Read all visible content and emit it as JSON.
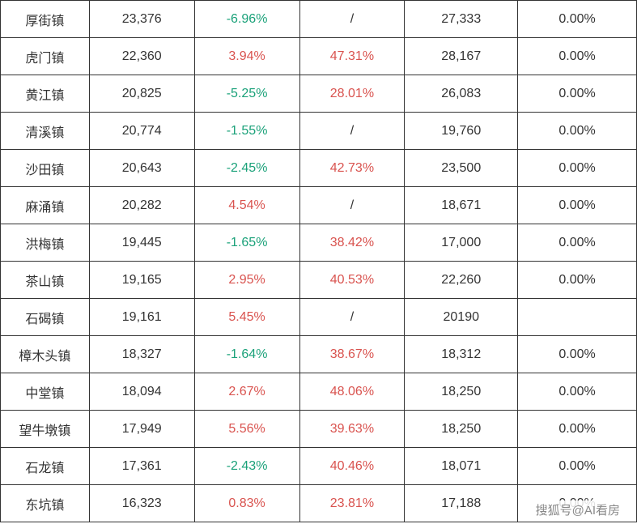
{
  "colors": {
    "positive": "#d9534f",
    "negative": "#1aa179",
    "text": "#333333",
    "border": "#333333"
  },
  "rows": [
    {
      "name": "厚街镇",
      "v1": "23,376",
      "p1": "-6.96%",
      "p1c": "neg",
      "p2": "/",
      "p2c": "",
      "v2": "27,333",
      "p3": "0.00%"
    },
    {
      "name": "虎门镇",
      "v1": "22,360",
      "p1": "3.94%",
      "p1c": "pos",
      "p2": "47.31%",
      "p2c": "pos",
      "v2": "28,167",
      "p3": "0.00%"
    },
    {
      "name": "黄江镇",
      "v1": "20,825",
      "p1": "-5.25%",
      "p1c": "neg",
      "p2": "28.01%",
      "p2c": "pos",
      "v2": "26,083",
      "p3": "0.00%"
    },
    {
      "name": "清溪镇",
      "v1": "20,774",
      "p1": "-1.55%",
      "p1c": "neg",
      "p2": "/",
      "p2c": "",
      "v2": "19,760",
      "p3": "0.00%"
    },
    {
      "name": "沙田镇",
      "v1": "20,643",
      "p1": "-2.45%",
      "p1c": "neg",
      "p2": "42.73%",
      "p2c": "pos",
      "v2": "23,500",
      "p3": "0.00%"
    },
    {
      "name": "麻涌镇",
      "v1": "20,282",
      "p1": "4.54%",
      "p1c": "pos",
      "p2": "/",
      "p2c": "",
      "v2": "18,671",
      "p3": "0.00%"
    },
    {
      "name": "洪梅镇",
      "v1": "19,445",
      "p1": "-1.65%",
      "p1c": "neg",
      "p2": "38.42%",
      "p2c": "pos",
      "v2": "17,000",
      "p3": "0.00%"
    },
    {
      "name": "茶山镇",
      "v1": "19,165",
      "p1": "2.95%",
      "p1c": "pos",
      "p2": "40.53%",
      "p2c": "pos",
      "v2": "22,260",
      "p3": "0.00%"
    },
    {
      "name": "石碣镇",
      "v1": "19,161",
      "p1": "5.45%",
      "p1c": "pos",
      "p2": "/",
      "p2c": "",
      "v2": "20190",
      "p3": ""
    },
    {
      "name": "樟木头镇",
      "v1": "18,327",
      "p1": "-1.64%",
      "p1c": "neg",
      "p2": "38.67%",
      "p2c": "pos",
      "v2": "18,312",
      "p3": "0.00%"
    },
    {
      "name": "中堂镇",
      "v1": "18,094",
      "p1": "2.67%",
      "p1c": "pos",
      "p2": "48.06%",
      "p2c": "pos",
      "v2": "18,250",
      "p3": "0.00%"
    },
    {
      "name": "望牛墩镇",
      "v1": "17,949",
      "p1": "5.56%",
      "p1c": "pos",
      "p2": "39.63%",
      "p2c": "pos",
      "v2": "18,250",
      "p3": "0.00%"
    },
    {
      "name": "石龙镇",
      "v1": "17,361",
      "p1": "-2.43%",
      "p1c": "neg",
      "p2": "40.46%",
      "p2c": "pos",
      "v2": "18,071",
      "p3": "0.00%"
    },
    {
      "name": "东坑镇",
      "v1": "16,323",
      "p1": "0.83%",
      "p1c": "pos",
      "p2": "23.81%",
      "p2c": "pos",
      "v2": "17,188",
      "p3": "0.00%"
    }
  ],
  "watermark": "搜狐号@AI看房"
}
